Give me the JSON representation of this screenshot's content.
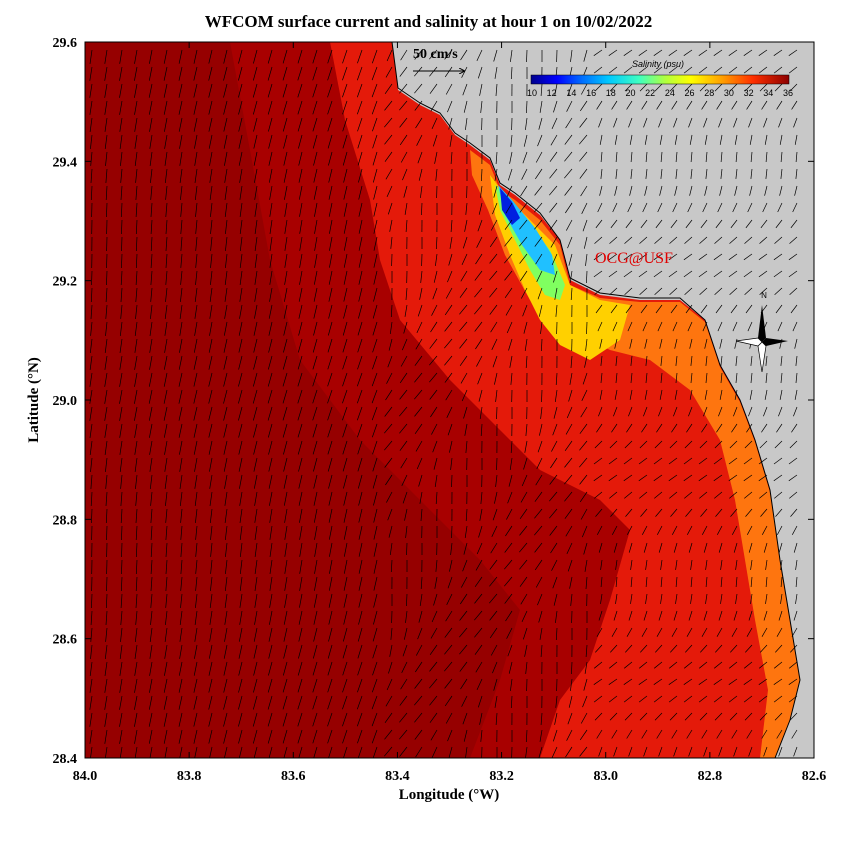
{
  "title": "WFCOM surface current and salinity at hour 1 on 10/02/2022",
  "x_axis": {
    "label": "Longitude (°W)",
    "ticks": [
      "84.0",
      "83.8",
      "83.6",
      "83.4",
      "83.2",
      "83.0",
      "82.8",
      "82.6"
    ],
    "range": [
      84.0,
      82.6
    ]
  },
  "y_axis": {
    "label": "Latitude (°N)",
    "ticks": [
      "29.6",
      "29.4",
      "29.2",
      "29.0",
      "28.8",
      "28.6",
      "28.4"
    ],
    "range": [
      28.4,
      29.6
    ]
  },
  "velocity_scale": {
    "label": "50 cm/s"
  },
  "colorbar": {
    "title": "Salinity (psu)",
    "ticks": [
      "10",
      "12",
      "14",
      "16",
      "18",
      "20",
      "22",
      "24",
      "26",
      "28",
      "30",
      "32",
      "34",
      "36"
    ],
    "range": [
      10,
      36
    ]
  },
  "credit": "OCG@USF",
  "north_arrow": {
    "label": "N"
  },
  "colors": {
    "land": "#c8c8c8",
    "deep_salinity": "#a80000",
    "high_salinity": "#e41a0a",
    "mid_salinity": "#ff8c00",
    "low_salinity": "#ffd800",
    "fresh_water": "#0000d8",
    "credit_text": "#e00000"
  }
}
